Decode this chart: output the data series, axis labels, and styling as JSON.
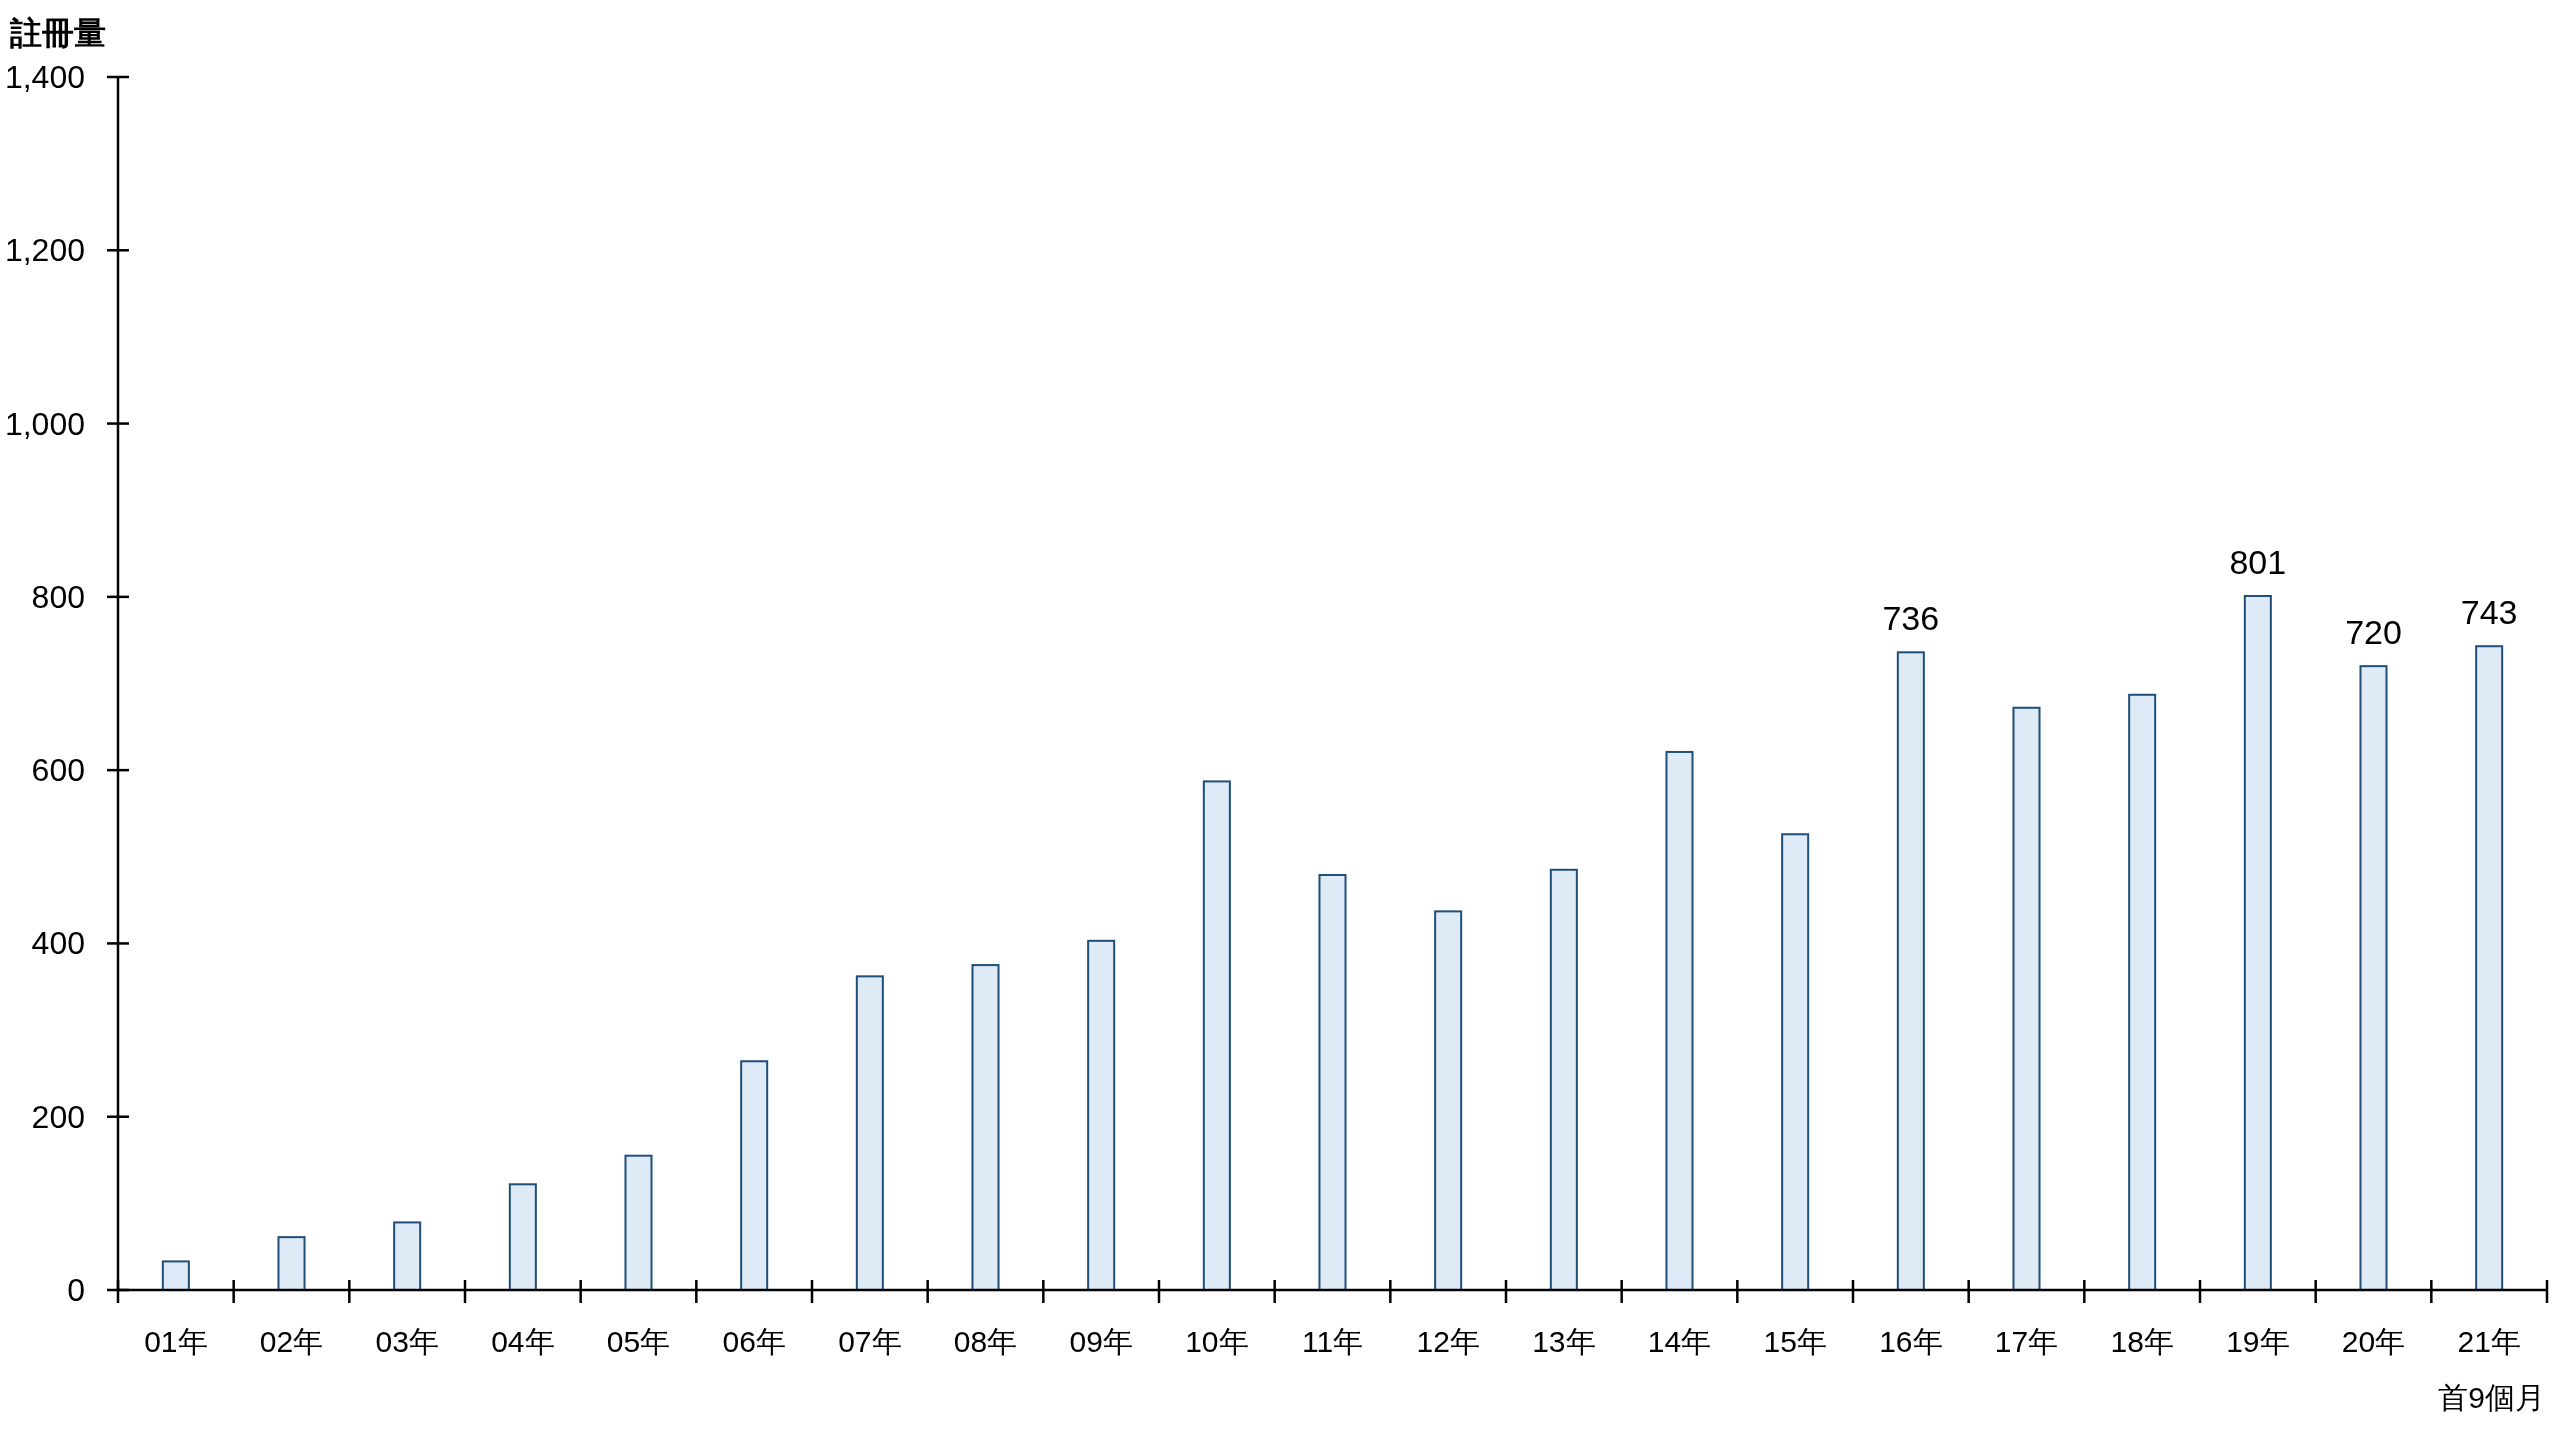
{
  "chart_data": {
    "type": "bar",
    "ylabel": "註冊量",
    "categories": [
      "01年",
      "02年",
      "03年",
      "04年",
      "05年",
      "06年",
      "07年",
      "08年",
      "09年",
      "10年",
      "11年",
      "12年",
      "13年",
      "14年",
      "15年",
      "16年",
      "17年",
      "18年",
      "19年",
      "20年",
      "21年"
    ],
    "values": [
      33,
      61,
      78,
      122,
      155,
      264,
      362,
      375,
      403,
      587,
      479,
      437,
      485,
      621,
      526,
      736,
      672,
      687,
      801,
      720,
      743
    ],
    "value_labels": [
      null,
      null,
      null,
      null,
      null,
      null,
      null,
      null,
      null,
      null,
      null,
      null,
      null,
      null,
      null,
      "736",
      null,
      null,
      "801",
      "720",
      "743"
    ],
    "color": "#deeaf6",
    "ylim": [
      0,
      1400
    ],
    "yticks": [
      0,
      200,
      400,
      600,
      800,
      {
        "value": 1000,
        "label": "1,000"
      },
      {
        "value": 1200,
        "label": "1,200"
      },
      {
        "value": 1400,
        "label": "1,400"
      }
    ],
    "annotations": [
      "首9個月"
    ]
  }
}
